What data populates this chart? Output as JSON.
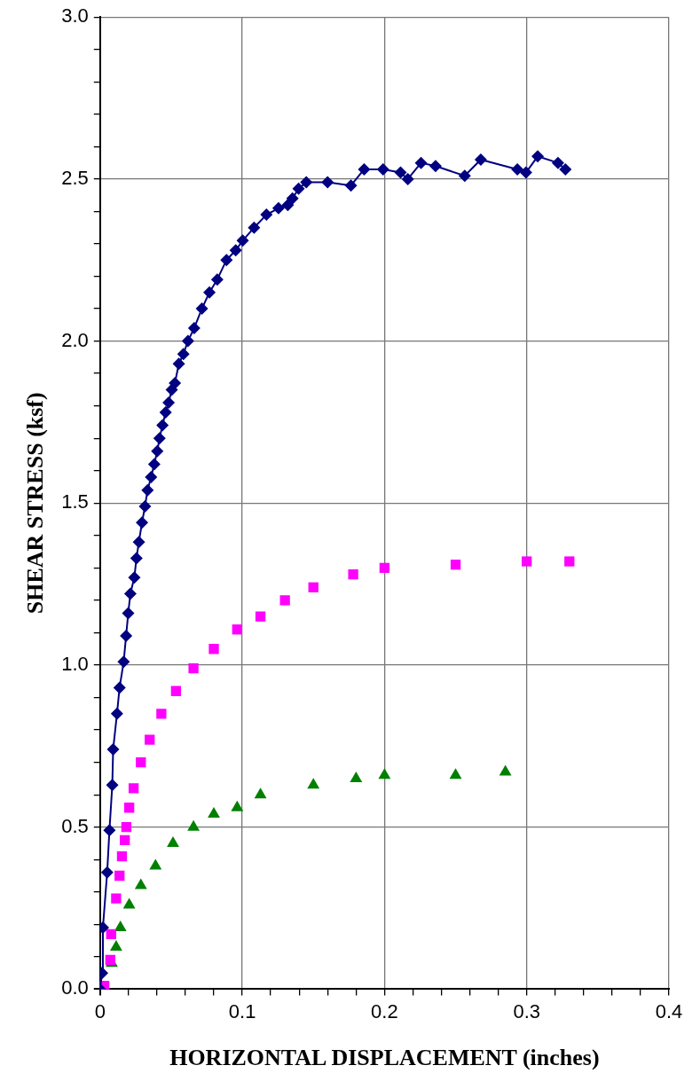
{
  "chart_data": {
    "type": "scatter",
    "xlabel": "HORIZONTAL DISPLACEMENT (inches)",
    "ylabel": "SHEAR STRESS (ksf)",
    "xlim": [
      0,
      0.4
    ],
    "ylim": [
      0,
      3.0
    ],
    "xticks": [
      0,
      {
        "value": 0.02,
        "label": null
      },
      {
        "value": 0.04,
        "label": null
      },
      {
        "value": 0.06,
        "label": null
      },
      {
        "value": 0.08,
        "label": null
      },
      0.1,
      {
        "value": 0.12,
        "label": null
      },
      {
        "value": 0.14,
        "label": null
      },
      {
        "value": 0.16,
        "label": null
      },
      {
        "value": 0.18,
        "label": null
      },
      0.2,
      {
        "value": 0.22,
        "label": null
      },
      {
        "value": 0.24,
        "label": null
      },
      {
        "value": 0.26,
        "label": null
      },
      {
        "value": 0.28,
        "label": null
      },
      0.3,
      {
        "value": 0.32,
        "label": null
      },
      {
        "value": 0.34,
        "label": null
      },
      {
        "value": 0.36,
        "label": null
      },
      {
        "value": 0.38,
        "label": null
      },
      0.4
    ],
    "yticks": [
      {
        "value": 0,
        "label": "0.0"
      },
      {
        "value": 0.1,
        "label": null
      },
      {
        "value": 0.2,
        "label": null
      },
      {
        "value": 0.3,
        "label": null
      },
      {
        "value": 0.4,
        "label": null
      },
      0.5,
      {
        "value": 0.6,
        "label": null
      },
      {
        "value": 0.7,
        "label": null
      },
      {
        "value": 0.8,
        "label": null
      },
      {
        "value": 0.9,
        "label": null
      },
      {
        "value": 1,
        "label": "1.0"
      },
      {
        "value": 1.1,
        "label": null
      },
      {
        "value": 1.2,
        "label": null
      },
      {
        "value": 1.3,
        "label": null
      },
      {
        "value": 1.4,
        "label": null
      },
      1.5,
      {
        "value": 1.6,
        "label": null
      },
      {
        "value": 1.7,
        "label": null
      },
      {
        "value": 1.8,
        "label": null
      },
      {
        "value": 1.9,
        "label": null
      },
      {
        "value": 2,
        "label": "2.0"
      },
      {
        "value": 2.1,
        "label": null
      },
      {
        "value": 2.2,
        "label": null
      },
      {
        "value": 2.3,
        "label": null
      },
      {
        "value": 2.4,
        "label": null
      },
      2.5,
      {
        "value": 2.6,
        "label": null
      },
      {
        "value": 2.7,
        "label": null
      },
      {
        "value": 2.8,
        "label": null
      },
      {
        "value": 2.9,
        "label": null
      },
      {
        "value": 3,
        "label": "3.0"
      }
    ],
    "grid": true,
    "legend": false,
    "series": [
      {
        "type": "line",
        "marker": "diamond",
        "line_style": "solid",
        "color": "#000080",
        "x": [
          0,
          0.0014,
          0.002,
          0.005,
          0.0066,
          0.0086,
          0.0092,
          0.0119,
          0.0137,
          0.0166,
          0.0183,
          0.0198,
          0.0213,
          0.0241,
          0.0256,
          0.0273,
          0.0295,
          0.0316,
          0.0334,
          0.0359,
          0.0381,
          0.0402,
          0.0418,
          0.0439,
          0.0461,
          0.0482,
          0.0504,
          0.0526,
          0.0554,
          0.0586,
          0.0618,
          0.0662,
          0.0716,
          0.0769,
          0.0824,
          0.0889,
          0.0954,
          0.1003,
          0.1083,
          0.117,
          0.1255,
          0.132,
          0.1353,
          0.1396,
          0.145,
          0.16,
          0.1764,
          0.1857,
          0.199,
          0.2113,
          0.2164,
          0.2257,
          0.2359,
          0.2564,
          0.2677,
          0.2934,
          0.2995,
          0.3077,
          0.322,
          0.3272
        ],
        "values": [
          0,
          0.05,
          0.19,
          0.36,
          0.49,
          0.63,
          0.74,
          0.85,
          0.93,
          1.01,
          1.09,
          1.16,
          1.22,
          1.27,
          1.33,
          1.38,
          1.44,
          1.49,
          1.54,
          1.58,
          1.62,
          1.66,
          1.7,
          1.74,
          1.78,
          1.81,
          1.85,
          1.87,
          1.93,
          1.96,
          2.0,
          2.04,
          2.1,
          2.15,
          2.19,
          2.25,
          2.28,
          2.31,
          2.35,
          2.39,
          2.41,
          2.42,
          2.44,
          2.47,
          2.49,
          2.49,
          2.48,
          2.53,
          2.53,
          2.52,
          2.5,
          2.55,
          2.54,
          2.51,
          2.56,
          2.53,
          2.52,
          2.57,
          2.55,
          2.53
        ]
      },
      {
        "marker": "square",
        "color": "#ff00ff",
        "x": [
          0,
          0.003,
          0.0072,
          0.0078,
          0.0113,
          0.0137,
          0.0154,
          0.0174,
          0.0185,
          0.0205,
          0.0236,
          0.0287,
          0.0349,
          0.0431,
          0.0534,
          0.0657,
          0.08,
          0.0964,
          0.1128,
          0.13,
          0.15,
          0.178,
          0.2,
          0.25,
          0.3,
          0.33
        ],
        "values": [
          0,
          0.01,
          0.09,
          0.17,
          0.28,
          0.35,
          0.41,
          0.46,
          0.5,
          0.56,
          0.62,
          0.7,
          0.77,
          0.85,
          0.92,
          0.99,
          1.05,
          1.11,
          1.15,
          1.2,
          1.24,
          1.28,
          1.3,
          1.31,
          1.32,
          1.32
        ]
      },
      {
        "marker": "triangle",
        "color": "#008000",
        "x": [
          0,
          0.004,
          0.0082,
          0.0113,
          0.0143,
          0.0205,
          0.0287,
          0.039,
          0.0513,
          0.0657,
          0.08,
          0.0964,
          0.1128,
          0.15,
          0.18,
          0.2,
          0.25,
          0.285
        ],
        "values": [
          0,
          0,
          0.08,
          0.13,
          0.19,
          0.26,
          0.32,
          0.38,
          0.45,
          0.5,
          0.54,
          0.56,
          0.6,
          0.63,
          0.65,
          0.66,
          0.66,
          0.67
        ]
      }
    ]
  }
}
